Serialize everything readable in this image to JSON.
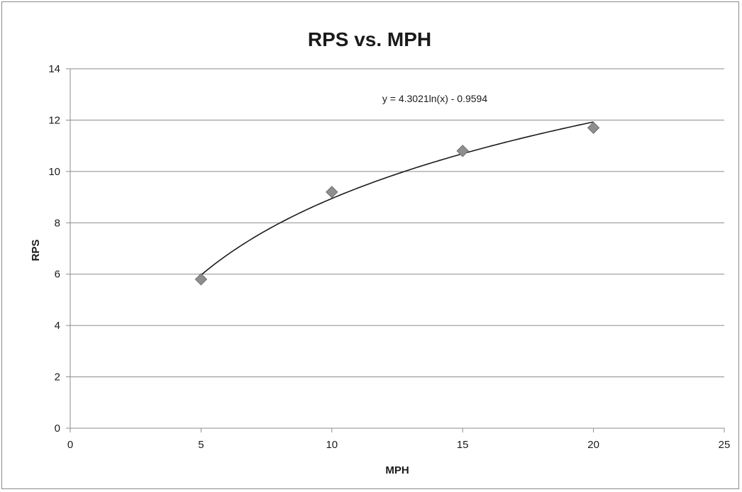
{
  "chart_data": {
    "type": "scatter",
    "title": "RPS vs. MPH",
    "xlabel": "MPH",
    "ylabel": "RPS",
    "xlim": [
      0,
      25
    ],
    "ylim": [
      0,
      14
    ],
    "x_ticks": [
      "0",
      "5",
      "10",
      "15",
      "20",
      "25"
    ],
    "y_ticks": [
      "0",
      "2",
      "4",
      "6",
      "8",
      "10",
      "12",
      "14"
    ],
    "grid": "horizontal",
    "legend": "none",
    "series": [
      {
        "x": [
          5,
          10,
          15,
          20
        ],
        "y": [
          5.8,
          9.2,
          10.8,
          11.7
        ],
        "marker": "diamond",
        "color": "#8e8e8e"
      }
    ],
    "trendline": {
      "type": "logarithmic",
      "a": 4.3021,
      "b": -0.9594,
      "x_range": [
        5,
        20
      ],
      "label": "y = 4.3021ln(x) - 0.9594",
      "color": "#1a1a1a"
    },
    "gridline_color": "#8c8c8c"
  }
}
